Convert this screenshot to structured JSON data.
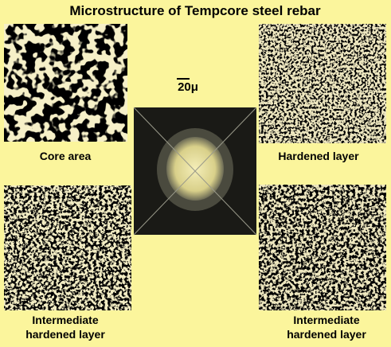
{
  "title": "Microstructure of Tempcore steel rebar",
  "scale_bar": "20μ",
  "panels": [
    {
      "label_lines": [
        "Core area"
      ]
    },
    {
      "label_lines": [
        "Hardened layer"
      ]
    },
    {
      "label_lines": [
        "Intermediate",
        "hardened layer"
      ]
    },
    {
      "label_lines": [
        "Intermediate",
        "hardened layer"
      ]
    }
  ]
}
